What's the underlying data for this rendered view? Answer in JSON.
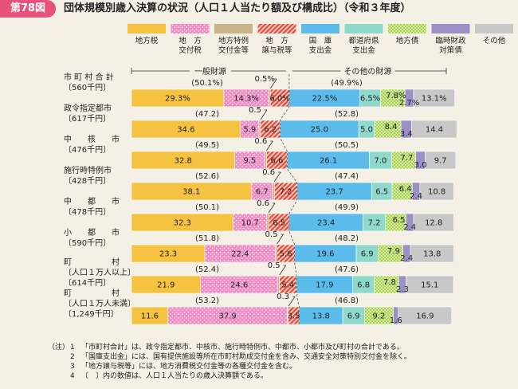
{
  "header": {
    "figure_label": "第78図",
    "title": "団体規模別歳入決算の状況（人口１人当たり額及び構成比）（令和３年度）"
  },
  "legend": [
    {
      "label": "地方税",
      "color": "#f5c242"
    },
    {
      "label": "地　方\n交付税",
      "color": "#f08cc4"
    },
    {
      "label": "地方特例\n交付金等",
      "color": "#c9b48a"
    },
    {
      "label": "地　方\n譲与税等",
      "color": "#e86a5c"
    },
    {
      "label": "国　庫\n支出金",
      "color": "#5bbcec"
    },
    {
      "label": "都道府県\n支出金",
      "color": "#8fd9cc"
    },
    {
      "label": "地方債",
      "color": "#cfe79a"
    },
    {
      "label": "臨時財政\n対策債",
      "color": "#9b8fc6"
    },
    {
      "label": "その他",
      "color": "#c8c8c8"
    }
  ],
  "brackets": {
    "general": "一般財源",
    "other": "その他の財源"
  },
  "chart_data": {
    "type": "bar",
    "orientation": "horizontal",
    "stacked": true,
    "unit": "%",
    "xlim": [
      0,
      100
    ],
    "series_names": [
      "地方税",
      "地方交付税",
      "地方特例交付金等",
      "地方譲与税等",
      "国庫支出金",
      "都道府県支出金",
      "地方債",
      "臨時財政対策債",
      "その他"
    ],
    "categories": [
      {
        "name": "市町村合計",
        "amount": "〔560千円〕",
        "general_pct": "(50.1%)",
        "other_pct": "(49.9%)",
        "small_label": "0.5%",
        "values": [
          29.3,
          14.3,
          0.5,
          6.0,
          22.5,
          6.5,
          7.8,
          2.7,
          13.1
        ],
        "labels": [
          "29.3%",
          "14.3%",
          "",
          "6.0%",
          "22.5%",
          "6.5%",
          "7.8%",
          "2.7%",
          "13.1%"
        ]
      },
      {
        "name": "政令指定都市",
        "amount": "〔617千円〕",
        "general_pct": "(47.2)",
        "other_pct": "(52.8)",
        "small_label": "0.5",
        "values": [
          34.6,
          5.9,
          0.5,
          6.2,
          25.0,
          5.0,
          8.4,
          3.4,
          14.4
        ],
        "labels": [
          "34.6",
          "5.9",
          "",
          "6.2",
          "25.0",
          "5.0",
          "8.4",
          "3.4",
          "14.4"
        ]
      },
      {
        "name": "中核市",
        "amount": "〔476千円〕",
        "general_pct": "(49.5)",
        "other_pct": "(50.5)",
        "small_label": "0.6",
        "values": [
          32.8,
          9.5,
          0.6,
          6.6,
          26.1,
          7.0,
          7.7,
          3.0,
          9.7
        ],
        "labels": [
          "32.8",
          "9.5",
          "",
          "6.6",
          "26.1",
          "7.0",
          "7.7",
          "3.0",
          "9.7"
        ]
      },
      {
        "name": "施行時特例市",
        "amount": "〔428千円〕",
        "general_pct": "(52.6)",
        "other_pct": "(47.4)",
        "small_label": "0.6",
        "values": [
          38.1,
          6.7,
          0.6,
          7.2,
          23.7,
          6.5,
          6.4,
          2.4,
          10.8
        ],
        "labels": [
          "38.1",
          "6.7",
          "",
          "7.2",
          "23.7",
          "6.5",
          "6.4",
          "2.4",
          "10.8"
        ]
      },
      {
        "name": "中都市",
        "amount": "〔478千円〕",
        "general_pct": "(50.1)",
        "other_pct": "(49.9)",
        "small_label": "0.6",
        "values": [
          32.3,
          10.7,
          0.6,
          6.5,
          23.4,
          7.2,
          6.5,
          2.4,
          12.8
        ],
        "labels": [
          "32.3",
          "10.7",
          "",
          "6.5",
          "23.4",
          "7.2",
          "6.5",
          "2.4",
          "12.8"
        ]
      },
      {
        "name": "小都市",
        "amount": "〔590千円〕",
        "general_pct": "(51.8)",
        "other_pct": "(48.2)",
        "small_label": "0.5",
        "values": [
          23.3,
          22.4,
          0.5,
          5.6,
          19.6,
          6.9,
          7.9,
          2.4,
          13.8
        ],
        "labels": [
          "23.3",
          "22.4",
          "",
          "5.6",
          "19.6",
          "6.9",
          "7.9",
          "2.4",
          "13.8"
        ]
      },
      {
        "name": "町村〔人口１万人以上〕",
        "amount": "〔614千円〕",
        "general_pct": "(52.4)",
        "other_pct": "(47.6)",
        "small_label": "0.5",
        "values": [
          21.9,
          24.6,
          0.5,
          5.4,
          17.9,
          6.8,
          7.8,
          2.3,
          15.1
        ],
        "labels": [
          "21.9",
          "24.6",
          "",
          "5.4",
          "17.9",
          "6.8",
          "7.8",
          "2.3",
          "15.1"
        ]
      },
      {
        "name": "町村〔人口１万人未満〕",
        "amount": "〔1,249千円〕",
        "general_pct": "(53.2)",
        "other_pct": "(46.8)",
        "small_label": "0.3",
        "values": [
          11.6,
          37.9,
          0.3,
          3.5,
          13.8,
          6.9,
          9.2,
          1.6,
          16.9
        ],
        "labels": [
          "11.6",
          "37.9",
          "",
          "3.5",
          "13.8",
          "6.9",
          "9.2",
          "1.6",
          "16.9"
        ]
      }
    ]
  },
  "category_lines": [
    [
      "市 町 村 合 計",
      "〔560千円〕"
    ],
    [
      "政令指定都市",
      "〔617千円〕"
    ],
    [
      "中　　核　　市",
      "〔476千円〕"
    ],
    [
      "施行時特例市",
      "〔428千円〕"
    ],
    [
      "中　　都　　市",
      "〔478千円〕"
    ],
    [
      "小　　都　　市",
      "〔590千円〕"
    ],
    [
      "町　　　　　村",
      "〔人口１万人以上〕",
      "〔614千円〕"
    ],
    [
      "町　　　　　村",
      "〔人口１万人未満〕",
      "〔1,249千円〕"
    ]
  ],
  "notes": [
    {
      "prefix": "（注）",
      "num": "1",
      "text": "「市町村合計」は、政令指定都市、中核市、施行時特例市、中都市、小都市及び町村の合計である。"
    },
    {
      "prefix": "",
      "num": "2",
      "text": "「国庫支出金」には、国有提供施設等所在市町村助成交付金を含み、交通安全対策特別交付金を除く。"
    },
    {
      "prefix": "",
      "num": "3",
      "text": "「地方譲与税等」には、地方消費税交付金等の各種交付金を含む。"
    },
    {
      "prefix": "",
      "num": "4",
      "text": "〔　〕内の数値は、人口１人当たりの歳入決算額である。"
    }
  ]
}
